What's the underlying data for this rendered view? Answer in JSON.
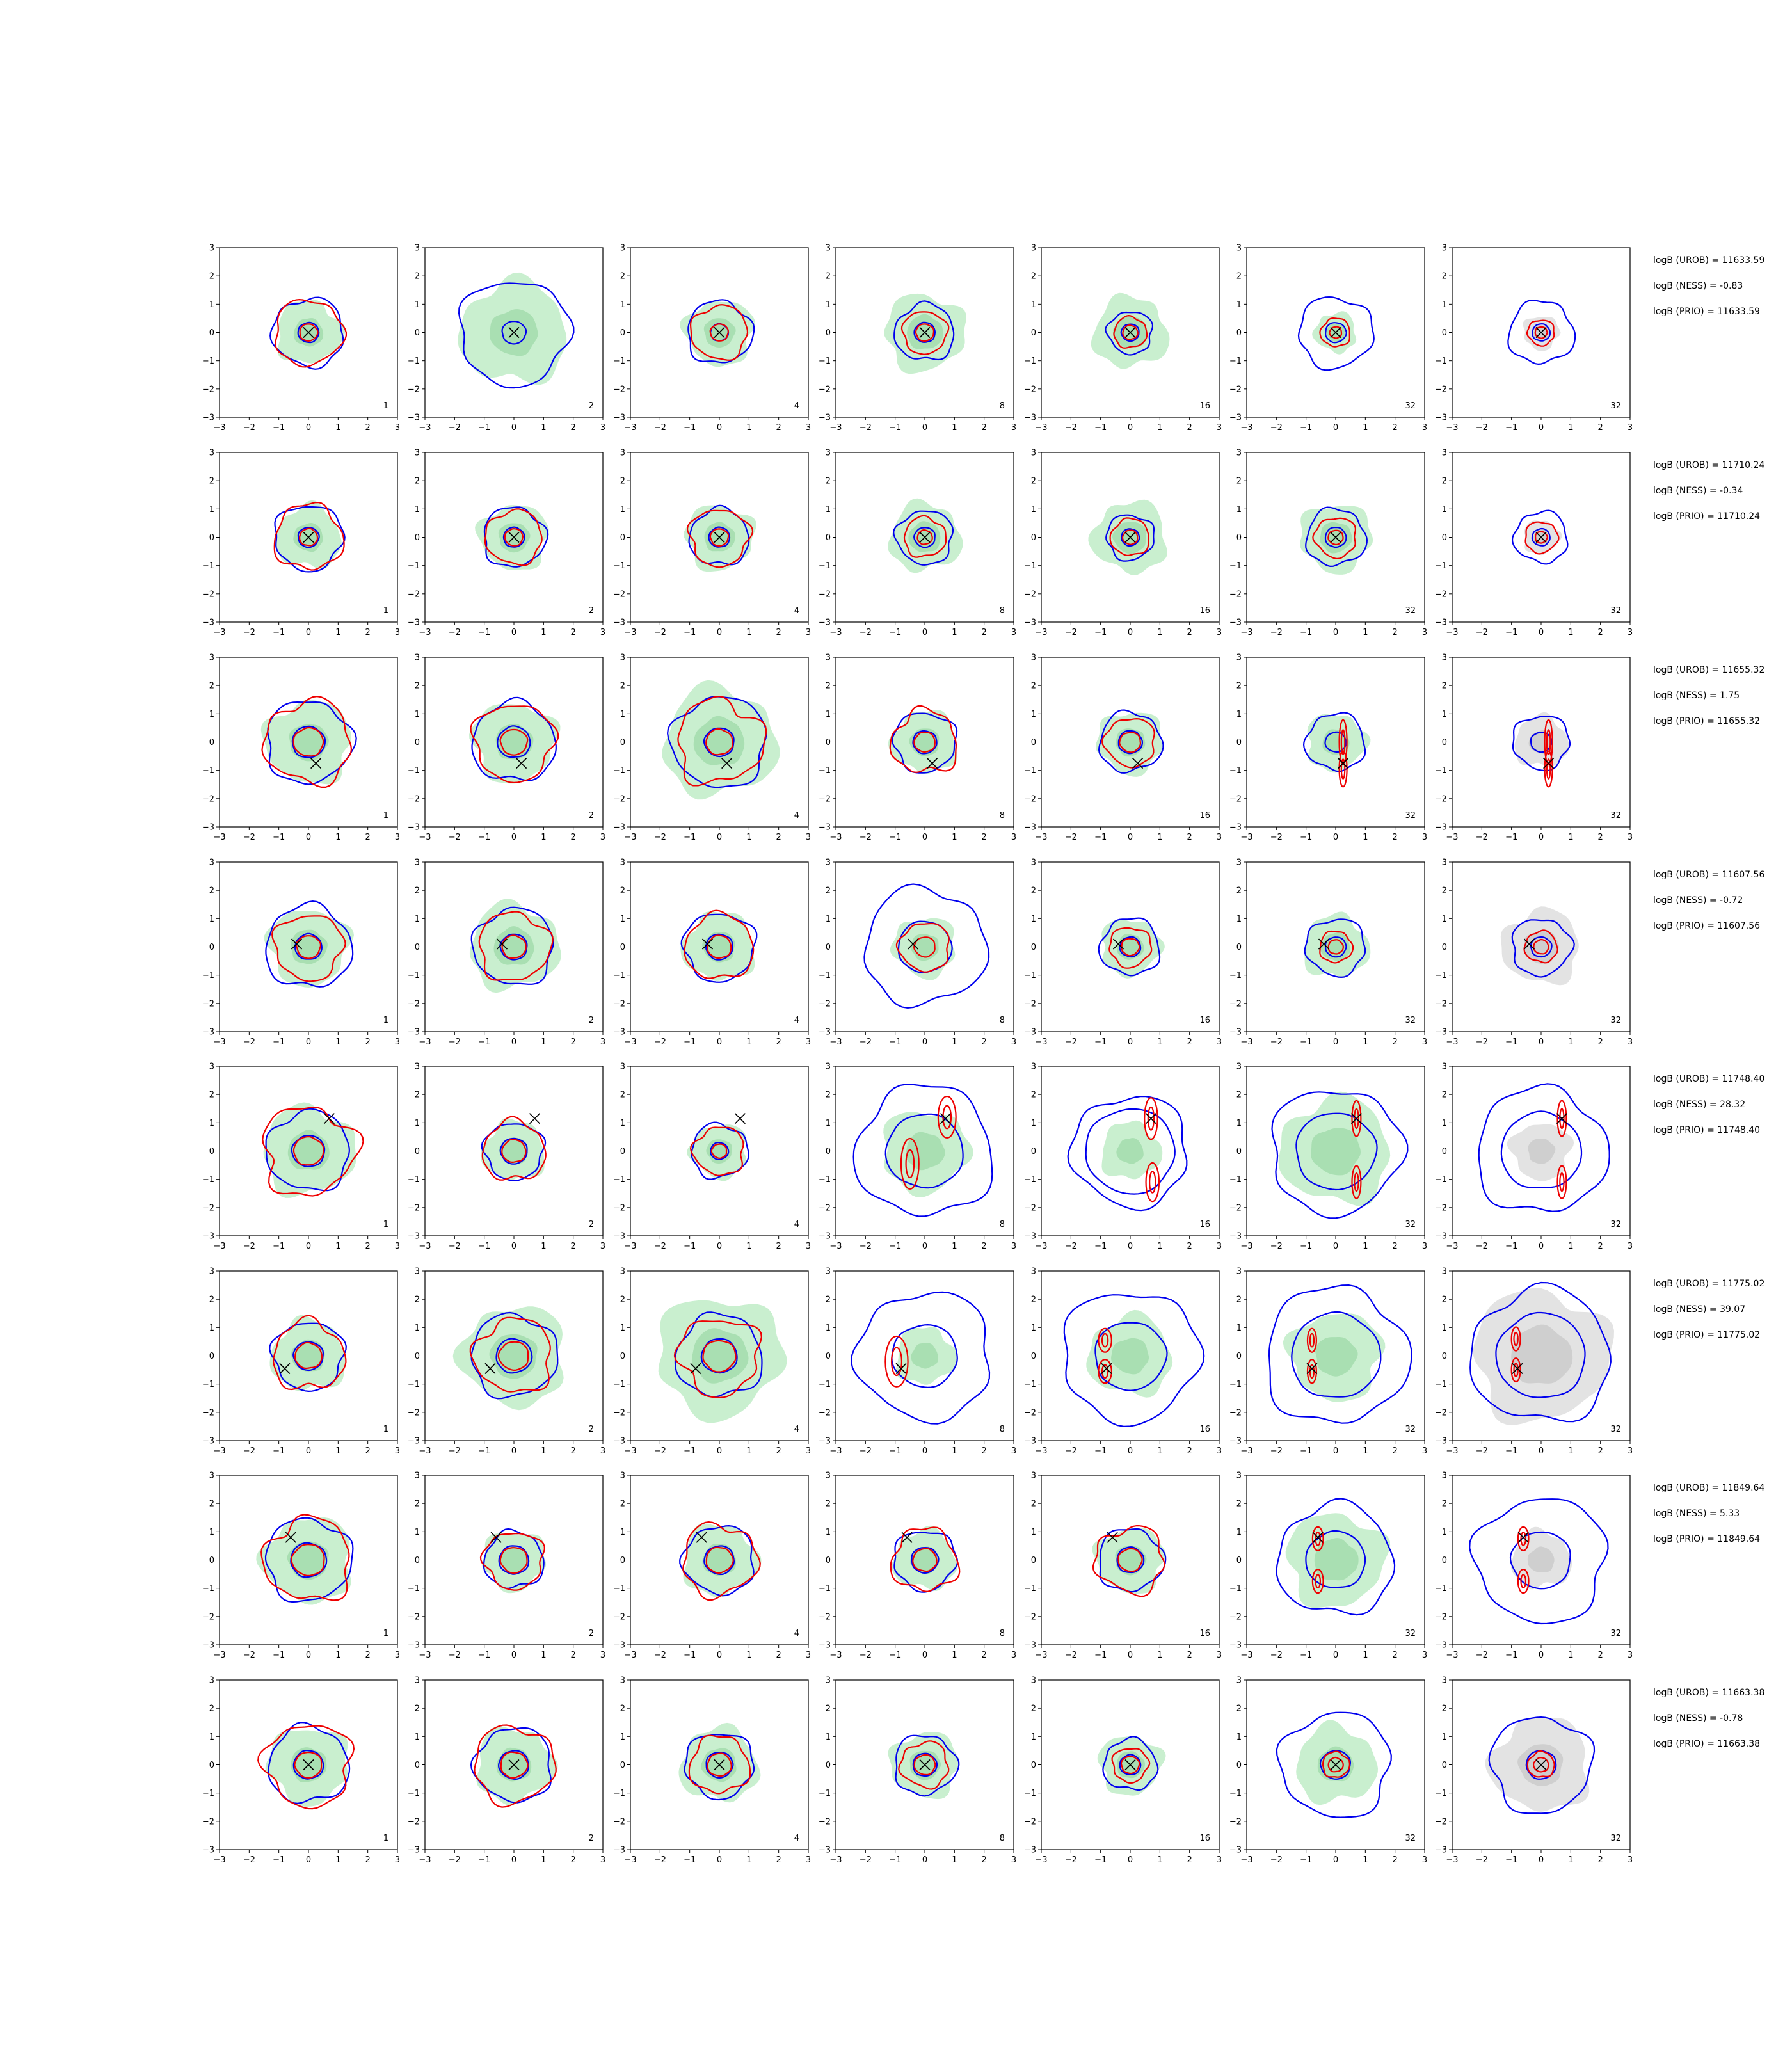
{
  "chart_data": {
    "type": "contour_grid",
    "rows": 8,
    "cols": 7,
    "xlim": [
      -3,
      3
    ],
    "ylim": [
      -3,
      3
    ],
    "xticks": [
      -3,
      -2,
      -1,
      0,
      1,
      2,
      3
    ],
    "yticks": [
      -3,
      -2,
      -1,
      0,
      1,
      2,
      3
    ],
    "tick_labels": [
      "−3",
      "−2",
      "−1",
      "0",
      "1",
      "2",
      "3"
    ],
    "col_labels": [
      "1",
      "2",
      "4",
      "8",
      "16",
      "32",
      "32"
    ],
    "colors": {
      "blue_contour": "#0000ee",
      "red_contour": "#ee0000",
      "green_fill": "#c9efcf",
      "green_fill_dark": "#a9dfb2",
      "grey_fill": "#e3e3e3",
      "grey_fill_dark": "#cfcfcf",
      "marker": "#000000"
    },
    "last_col_fill": "grey",
    "row_stats": [
      {
        "urob": "logB (UROB) = 11633.59",
        "ness": "logB (NESS) = -0.83",
        "prio": "logB (PRIO) = 11633.59"
      },
      {
        "urob": "logB (UROB) = 11710.24",
        "ness": "logB (NESS) = -0.34",
        "prio": "logB (PRIO) = 11710.24"
      },
      {
        "urob": "logB (UROB) = 11655.32",
        "ness": "logB (NESS) = 1.75",
        "prio": "logB (PRIO) = 11655.32"
      },
      {
        "urob": "logB (UROB) = 11607.56",
        "ness": "logB (NESS) = -0.72",
        "prio": "logB (PRIO) = 11607.56"
      },
      {
        "urob": "logB (UROB) = 11748.40",
        "ness": "logB (NESS) = 28.32",
        "prio": "logB (PRIO) = 11748.40"
      },
      {
        "urob": "logB (UROB) = 11775.02",
        "ness": "logB (NESS) = 39.07",
        "prio": "logB (PRIO) = 11775.02"
      },
      {
        "urob": "logB (UROB) = 11849.64",
        "ness": "logB (NESS) = 5.33",
        "prio": "logB (PRIO) = 11849.64"
      },
      {
        "urob": "logB (UROB) = 11663.38",
        "ness": "logB (NESS) = -0.78",
        "prio": "logB (PRIO) = 11663.38"
      }
    ],
    "rows_data": [
      {
        "marker": [
          0.0,
          0.0
        ],
        "panels": [
          {
            "fill": 1.1,
            "blue": [
              1.2,
              0.35
            ],
            "red": [
              1.15,
              0.3
            ],
            "red_wobble": 0.12
          },
          {
            "fill": 1.8,
            "blue": [
              1.85,
              0.4
            ],
            "red": [],
            "red_wobble": 0
          },
          {
            "fill": 1.15,
            "blue": [
              1.1,
              0.3
            ],
            "red": [
              0.95,
              0.3
            ],
            "red_wobble": 0.12
          },
          {
            "fill": 1.35,
            "blue": [
              1.0,
              0.35
            ],
            "red": [
              0.75,
              0.3
            ],
            "red_wobble": 0.1
          },
          {
            "fill": 1.25,
            "blue": [
              0.75,
              0.3
            ],
            "red": [
              0.55,
              0.25
            ],
            "red_wobble": 0.1
          },
          {
            "fill": 0.7,
            "blue": [
              1.25,
              0.35
            ],
            "red": [
              0.5,
              0.2
            ],
            "red_wobble": 0.1
          },
          {
            "fill": 0.6,
            "blue": [
              1.1,
              0.3
            ],
            "red": [
              0.45,
              0.2
            ],
            "red_wobble": 0.1
          }
        ]
      },
      {
        "marker": [
          0.0,
          0.0
        ],
        "panels": [
          {
            "fill": 1.1,
            "blue": [
              1.15,
              0.35
            ],
            "red": [
              1.15,
              0.3
            ],
            "red_wobble": 0.15
          },
          {
            "fill": 1.15,
            "blue": [
              1.05,
              0.35
            ],
            "red": [
              0.95,
              0.3
            ],
            "red_wobble": 0.12
          },
          {
            "fill": 1.15,
            "blue": [
              1.0,
              0.35
            ],
            "red": [
              1.0,
              0.3
            ],
            "red_wobble": 0.15
          },
          {
            "fill": 1.2,
            "blue": [
              0.95,
              0.35
            ],
            "red": [
              0.7,
              0.25
            ],
            "red_wobble": 0.12
          },
          {
            "fill": 1.25,
            "blue": [
              0.8,
              0.3
            ],
            "red": [
              0.65,
              0.25
            ],
            "red_wobble": 0.1
          },
          {
            "fill": 1.2,
            "blue": [
              1.0,
              0.35
            ],
            "red": [
              0.7,
              0.25
            ],
            "red_wobble": 0.12
          },
          {
            "fill": 0.6,
            "blue": [
              0.9,
              0.3
            ],
            "red": [
              0.55,
              0.2
            ],
            "red_wobble": 0.1
          }
        ]
      },
      {
        "marker": [
          0.25,
          -0.75
        ],
        "panels": [
          {
            "fill": 1.45,
            "blue": [
              1.45,
              0.55
            ],
            "red": [
              1.45,
              0.5
            ],
            "red_wobble": 0.18
          },
          {
            "fill": 1.4,
            "blue": [
              1.4,
              0.55
            ],
            "red": [
              1.35,
              0.45
            ],
            "red_wobble": 0.15
          },
          {
            "fill": 1.9,
            "blue": [
              1.6,
              0.5
            ],
            "red": [
              1.45,
              0.45
            ],
            "red_wobble": 0.22
          },
          {
            "fill": 1.1,
            "blue": [
              1.05,
              0.4
            ],
            "red": [
              1.1,
              0.35
            ],
            "red_wobble": 0.2
          },
          {
            "fill": 1.1,
            "blue": [
              1.05,
              0.4
            ],
            "red": [
              0.85,
              0.35
            ],
            "red_wobble": 0.12
          },
          {
            "fill": 1.0,
            "blue": [
              1.0,
              0.35
            ],
            "red": [],
            "red_wobble": 0,
            "red_ellipses": [
              [
                0.25,
                0.0,
                0.13,
                0.75
              ],
              [
                0.25,
                -0.95,
                0.13,
                0.6
              ]
            ]
          },
          {
            "fill": 0.9,
            "blue": [
              0.95,
              0.35
            ],
            "red": [],
            "red_wobble": 0,
            "red_ellipses": [
              [
                0.25,
                0.0,
                0.13,
                0.75
              ],
              [
                0.25,
                -0.95,
                0.13,
                0.6
              ]
            ]
          }
        ]
      },
      {
        "marker": [
          -0.4,
          0.1
        ],
        "panels": [
          {
            "fill": 1.35,
            "blue": [
              1.45,
              0.45
            ],
            "red": [
              1.15,
              0.4
            ],
            "red_wobble": 0.15
          },
          {
            "fill": 1.5,
            "blue": [
              1.35,
              0.45
            ],
            "red": [
              1.2,
              0.4
            ],
            "red_wobble": 0.15
          },
          {
            "fill": 1.2,
            "blue": [
              1.2,
              0.45
            ],
            "red": [
              1.15,
              0.4
            ],
            "red_wobble": 0.12
          },
          {
            "fill": 1.05,
            "blue": [
              2.05,
              0.9
            ],
            "red": [
              0.85,
              0.35
            ],
            "red_wobble": 0.12
          },
          {
            "fill": 1.0,
            "blue": [
              1.0,
              0.35
            ],
            "red": [
              0.7,
              0.3
            ],
            "red_wobble": 0.12
          },
          {
            "fill": 1.1,
            "blue": [
              1.0,
              0.35
            ],
            "red": [
              0.55,
              0.25
            ],
            "red_wobble": 0.1
          },
          {
            "fill": 1.3,
            "blue": [
              1.0,
              0.35
            ],
            "red": [
              0.55,
              0.25
            ],
            "red_wobble": 0.1
          }
        ]
      },
      {
        "marker": [
          0.7,
          1.15
        ],
        "panels": [
          {
            "fill": 1.55,
            "blue": [
              1.4,
              0.55
            ],
            "red": [
              1.55,
              0.5
            ],
            "red_wobble": 0.22
          },
          {
            "fill": 1.05,
            "blue": [
              1.0,
              0.45
            ],
            "red": [
              1.05,
              0.4
            ],
            "red_wobble": 0.15
          },
          {
            "fill": 0.95,
            "blue": [
              0.95,
              0.3
            ],
            "red": [
              0.85,
              0.25
            ],
            "red_wobble": 0.15
          },
          {
            "fill": 1.45,
            "blue": [
              2.3,
              1.3
            ],
            "red": [],
            "red_wobble": 0,
            "red_ellipses": [
              [
                0.75,
                1.2,
                0.3,
                0.7
              ],
              [
                -0.5,
                -0.45,
                0.3,
                0.85
              ]
            ]
          },
          {
            "fill": 1.0,
            "blue": [
              1.95,
              1.5
            ],
            "red": [],
            "red_wobble": 0,
            "red_ellipses": [
              [
                0.7,
                1.15,
                0.22,
                0.7
              ],
              [
                0.75,
                -1.1,
                0.22,
                0.65
              ]
            ]
          },
          {
            "fill": 1.85,
            "blue": [
              2.2,
              1.35
            ],
            "red": [],
            "red_wobble": 0,
            "red_ellipses": [
              [
                0.7,
                1.15,
                0.15,
                0.6
              ],
              [
                0.7,
                -1.1,
                0.15,
                0.55
              ]
            ]
          },
          {
            "fill": 1.0,
            "blue": [
              2.2,
              1.35
            ],
            "red": [],
            "red_wobble": 0,
            "red_ellipses": [
              [
                0.7,
                1.15,
                0.15,
                0.6
              ],
              [
                0.7,
                -1.1,
                0.15,
                0.55
              ]
            ]
          }
        ]
      },
      {
        "marker": [
          -0.8,
          -0.45
        ],
        "panels": [
          {
            "fill": 1.25,
            "blue": [
              1.2,
              0.5
            ],
            "red": [
              1.2,
              0.45
            ],
            "red_wobble": 0.18
          },
          {
            "fill": 1.75,
            "blue": [
              1.45,
              0.6
            ],
            "red": [
              1.3,
              0.5
            ],
            "red_wobble": 0.18
          },
          {
            "fill": 2.1,
            "blue": [
              1.45,
              0.6
            ],
            "red": [
              1.35,
              0.55
            ],
            "red_wobble": 0.2
          },
          {
            "fill": 1.0,
            "blue": [
              2.25,
              1.1
            ],
            "red": [],
            "red_wobble": 0,
            "red_ellipses": [
              [
                -0.95,
                -0.2,
                0.38,
                0.85
              ]
            ]
          },
          {
            "fill": 1.4,
            "blue": [
              2.3,
              1.2
            ],
            "red": [],
            "red_wobble": 0,
            "red_ellipses": [
              [
                -0.85,
                0.55,
                0.22,
                0.4
              ],
              [
                -0.85,
                -0.55,
                0.22,
                0.4
              ]
            ]
          },
          {
            "fill": 1.55,
            "blue": [
              2.4,
              1.5
            ],
            "red": [],
            "red_wobble": 0,
            "red_ellipses": [
              [
                -0.8,
                0.55,
                0.15,
                0.4
              ],
              [
                -0.8,
                -0.55,
                0.15,
                0.4
              ]
            ]
          },
          {
            "fill": 2.3,
            "blue": [
              2.35,
              1.5
            ],
            "red": [],
            "red_wobble": 0,
            "red_ellipses": [
              [
                -0.85,
                0.6,
                0.15,
                0.4
              ],
              [
                -0.85,
                -0.5,
                0.15,
                0.4
              ]
            ]
          }
        ]
      },
      {
        "marker": [
          -0.6,
          0.8
        ],
        "panels": [
          {
            "fill": 1.5,
            "blue": [
              1.45,
              0.6
            ],
            "red": [
              1.45,
              0.55
            ],
            "red_wobble": 0.2
          },
          {
            "fill": 1.05,
            "blue": [
              1.0,
              0.5
            ],
            "red": [
              1.0,
              0.45
            ],
            "red_wobble": 0.15
          },
          {
            "fill": 1.25,
            "blue": [
              1.2,
              0.5
            ],
            "red": [
              1.25,
              0.45
            ],
            "red_wobble": 0.18
          },
          {
            "fill": 1.05,
            "blue": [
              1.05,
              0.45
            ],
            "red": [
              1.1,
              0.4
            ],
            "red_wobble": 0.18
          },
          {
            "fill": 1.15,
            "blue": [
              1.1,
              0.45
            ],
            "red": [
              1.15,
              0.4
            ],
            "red_wobble": 0.2
          },
          {
            "fill": 1.65,
            "blue": [
              1.95,
              1.0
            ],
            "red": [],
            "red_wobble": 0,
            "red_ellipses": [
              [
                -0.6,
                0.75,
                0.18,
                0.4
              ],
              [
                -0.6,
                -0.75,
                0.18,
                0.4
              ]
            ]
          },
          {
            "fill": 1.0,
            "blue": [
              2.2,
              1.0
            ],
            "red": [],
            "red_wobble": 0,
            "red_ellipses": [
              [
                -0.6,
                0.75,
                0.18,
                0.4
              ],
              [
                -0.6,
                -0.75,
                0.18,
                0.4
              ]
            ]
          }
        ]
      },
      {
        "marker": [
          0.0,
          0.0
        ],
        "panels": [
          {
            "fill": 1.35,
            "blue": [
              1.35,
              0.5
            ],
            "red": [
              1.45,
              0.45
            ],
            "red_wobble": 0.18
          },
          {
            "fill": 1.3,
            "blue": [
              1.3,
              0.5
            ],
            "red": [
              1.35,
              0.45
            ],
            "red_wobble": 0.15
          },
          {
            "fill": 1.3,
            "blue": [
              1.15,
              0.45
            ],
            "red": [
              1.0,
              0.4
            ],
            "red_wobble": 0.15
          },
          {
            "fill": 1.15,
            "blue": [
              1.05,
              0.4
            ],
            "red": [
              0.8,
              0.35
            ],
            "red_wobble": 0.15
          },
          {
            "fill": 1.05,
            "blue": [
              0.9,
              0.35
            ],
            "red": [
              0.6,
              0.3
            ],
            "red_wobble": 0.12
          },
          {
            "fill": 1.35,
            "blue": [
              1.85,
              0.5
            ],
            "red": [
              0.45,
              0.25
            ],
            "red_wobble": 0.1
          },
          {
            "fill": 1.65,
            "blue": [
              1.7,
              0.5
            ],
            "red": [
              0.45,
              0.25
            ],
            "red_wobble": 0.1
          }
        ]
      }
    ]
  }
}
